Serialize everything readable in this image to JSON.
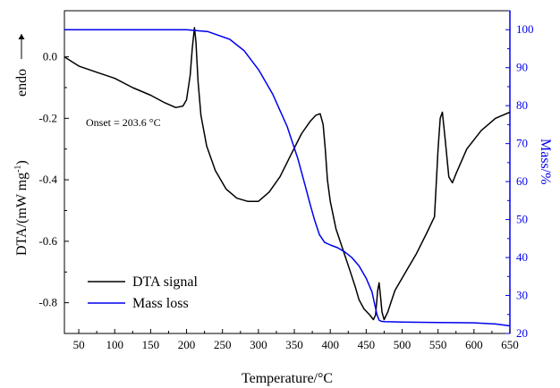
{
  "chart_data": {
    "type": "line",
    "xlabel": "Temperature/°C",
    "ylabel_left": "DTA/(mW mg",
    "ylabel_left_sup": "-1",
    "ylabel_left_close": ")",
    "ylabel_right": "Mass/%",
    "endo_label": "endo",
    "xlim": [
      30,
      650
    ],
    "ylim_left": [
      -0.9,
      0.15
    ],
    "ylim_right": [
      20,
      105
    ],
    "x_ticks": [
      50,
      100,
      150,
      200,
      250,
      300,
      350,
      400,
      450,
      500,
      550,
      600,
      650
    ],
    "y_left_ticks": [
      0.0,
      -0.2,
      -0.4,
      -0.6,
      -0.8
    ],
    "y_left_tick_labels": [
      "0.0",
      "-0.2",
      "-0.4",
      "-0.6",
      "-0.8"
    ],
    "y_right_ticks": [
      20,
      30,
      40,
      50,
      60,
      70,
      80,
      90,
      100
    ],
    "annotation": "Onset = 203.6 °C",
    "colors": {
      "dta": "#000000",
      "mass": "#0000ee",
      "right_axis": "#0000ee"
    },
    "series": [
      {
        "name": "DTA signal",
        "axis": "left",
        "x": [
          30,
          50,
          75,
          100,
          125,
          150,
          170,
          185,
          195,
          200,
          205,
          208,
          211,
          213,
          216,
          220,
          228,
          240,
          255,
          270,
          285,
          300,
          315,
          330,
          345,
          360,
          372,
          380,
          386,
          390,
          393,
          396,
          400,
          408,
          418,
          428,
          435,
          440,
          447,
          455,
          460,
          463,
          466,
          468,
          470,
          472,
          475,
          480,
          490,
          505,
          520,
          535,
          545,
          550,
          553,
          556,
          560,
          565,
          570,
          575,
          590,
          610,
          630,
          650
        ],
        "y": [
          0.0,
          -0.03,
          -0.05,
          -0.07,
          -0.1,
          -0.125,
          -0.15,
          -0.165,
          -0.16,
          -0.14,
          -0.06,
          0.03,
          0.095,
          0.05,
          -0.08,
          -0.19,
          -0.29,
          -0.37,
          -0.43,
          -0.46,
          -0.47,
          -0.47,
          -0.44,
          -0.39,
          -0.32,
          -0.25,
          -0.21,
          -0.19,
          -0.185,
          -0.22,
          -0.3,
          -0.4,
          -0.47,
          -0.56,
          -0.63,
          -0.7,
          -0.75,
          -0.79,
          -0.82,
          -0.84,
          -0.855,
          -0.84,
          -0.76,
          -0.735,
          -0.78,
          -0.83,
          -0.855,
          -0.83,
          -0.76,
          -0.7,
          -0.64,
          -0.57,
          -0.52,
          -0.3,
          -0.2,
          -0.18,
          -0.27,
          -0.39,
          -0.41,
          -0.38,
          -0.3,
          -0.24,
          -0.2,
          -0.18
        ]
      },
      {
        "name": "Mass loss",
        "axis": "right",
        "x": [
          30,
          100,
          150,
          200,
          230,
          260,
          280,
          300,
          320,
          340,
          355,
          365,
          372,
          378,
          385,
          392,
          400,
          410,
          420,
          430,
          440,
          450,
          458,
          462,
          465,
          468,
          471,
          475,
          500,
          550,
          600,
          630,
          650
        ],
        "y": [
          100,
          100,
          100,
          100,
          99.5,
          97.5,
          94.5,
          89.5,
          83,
          74.5,
          66,
          59,
          54,
          50,
          46,
          44,
          43.3,
          42.6,
          41.5,
          40,
          37.8,
          34.5,
          31,
          27.5,
          25,
          23.5,
          23.2,
          23.1,
          23,
          22.9,
          22.8,
          22.5,
          22
        ]
      }
    ],
    "legend": [
      {
        "label": "DTA signal",
        "color": "#000000"
      },
      {
        "label": "Mass loss",
        "color": "#0000ee"
      }
    ]
  }
}
